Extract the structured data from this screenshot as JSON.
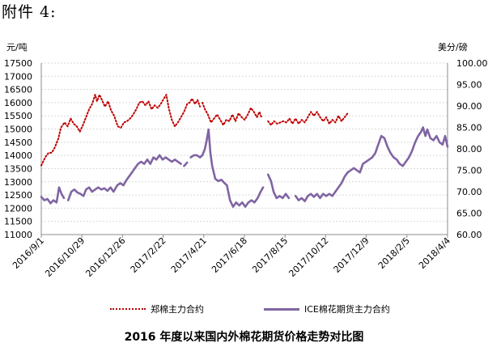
{
  "heading": "附件 4:",
  "caption": "2016 年度以来国内外棉花期货价格走势对比图",
  "chart_data": {
    "type": "line",
    "units": {
      "left": "元/吨",
      "right": "美分/磅"
    },
    "y_left": {
      "min": 11000,
      "max": 17500,
      "step": 500,
      "ticks": [
        "11000",
        "11500",
        "12000",
        "12500",
        "13000",
        "13500",
        "14000",
        "14500",
        "15000",
        "15500",
        "16000",
        "16500",
        "17000",
        "17500"
      ]
    },
    "y_right": {
      "min": 60.0,
      "max": 100.0,
      "step": 5,
      "ticks": [
        "60.00",
        "65.00",
        "70.00",
        "75.00",
        "80.00",
        "85.00",
        "90.00",
        "95.00",
        "100.00"
      ]
    },
    "x_ticks": [
      "2016/9/1",
      "2016/10/29",
      "2016/12/26",
      "2017/2/22",
      "2017/4/21",
      "2017/6/18",
      "2017/8/15",
      "2017/10/12",
      "2017/12/9",
      "2018/2/5",
      "2018/4/4"
    ],
    "series": [
      {
        "name": "郑棉主力合约",
        "axis": "left",
        "color": "#c00000",
        "segments": [
          [
            [
              0,
              13620
            ],
            [
              0.7,
              13950
            ],
            [
              1.2,
              14100
            ],
            [
              1.7,
              14100
            ],
            [
              2.2,
              14300
            ],
            [
              2.8,
              14650
            ],
            [
              3.2,
              15050
            ],
            [
              3.8,
              15250
            ],
            [
              4.3,
              15100
            ],
            [
              4.8,
              15400
            ],
            [
              5.3,
              15200
            ],
            [
              5.8,
              15100
            ],
            [
              6.3,
              14900
            ],
            [
              6.8,
              15150
            ],
            [
              7.3,
              15450
            ],
            [
              7.8,
              15750
            ],
            [
              8.3,
              15950
            ],
            [
              8.8,
              16300
            ],
            [
              9.1,
              16050
            ],
            [
              9.5,
              16300
            ],
            [
              9.9,
              16100
            ],
            [
              10.4,
              15850
            ],
            [
              10.9,
              16050
            ],
            [
              11.4,
              15700
            ],
            [
              11.9,
              15500
            ],
            [
              12.5,
              15100
            ],
            [
              13.0,
              15050
            ],
            [
              13.5,
              15250
            ],
            [
              14.0,
              15300
            ],
            [
              14.5,
              15400
            ],
            [
              15.0,
              15550
            ],
            [
              15.5,
              15750
            ],
            [
              16.0,
              16000
            ],
            [
              16.5,
              16050
            ],
            [
              17.0,
              15900
            ],
            [
              17.5,
              16050
            ],
            [
              18.0,
              15750
            ],
            [
              18.5,
              15900
            ],
            [
              19.0,
              15800
            ],
            [
              19.5,
              15950
            ],
            [
              20.0,
              16150
            ],
            [
              20.4,
              16300
            ],
            [
              20.8,
              15800
            ],
            [
              21.3,
              15350
            ],
            [
              21.8,
              15100
            ],
            [
              22.3,
              15250
            ],
            [
              22.8,
              15450
            ],
            [
              23.3,
              15650
            ],
            [
              23.8,
              15950
            ],
            [
              24.2,
              16000
            ],
            [
              24.6,
              16150
            ],
            [
              25.1,
              15950
            ],
            [
              25.5,
              16100
            ],
            [
              25.9,
              15850
            ]
          ],
          [
            [
              26.3,
              16000
            ],
            [
              26.7,
              15750
            ],
            [
              27.2,
              15550
            ],
            [
              27.7,
              15250
            ],
            [
              28.2,
              15400
            ],
            [
              28.7,
              15550
            ],
            [
              29.2,
              15350
            ],
            [
              29.7,
              15150
            ],
            [
              30.2,
              15350
            ],
            [
              30.7,
              15300
            ],
            [
              31.2,
              15550
            ],
            [
              31.7,
              15300
            ],
            [
              32.2,
              15600
            ],
            [
              32.7,
              15450
            ],
            [
              33.2,
              15350
            ],
            [
              33.7,
              15550
            ],
            [
              34.2,
              15800
            ],
            [
              34.7,
              15650
            ],
            [
              35.2,
              15450
            ],
            [
              35.6,
              15650
            ],
            [
              36.0,
              15400
            ]
          ],
          [
            [
              37.0,
              15300
            ],
            [
              37.5,
              15150
            ],
            [
              38.0,
              15300
            ],
            [
              38.5,
              15200
            ],
            [
              39.0,
              15250
            ],
            [
              39.5,
              15300
            ],
            [
              40.0,
              15250
            ],
            [
              40.5,
              15400
            ],
            [
              41.0,
              15200
            ],
            [
              41.5,
              15400
            ],
            [
              42.0,
              15200
            ],
            [
              42.5,
              15350
            ],
            [
              43.0,
              15250
            ],
            [
              43.5,
              15450
            ],
            [
              44.0,
              15650
            ],
            [
              44.5,
              15500
            ],
            [
              45.0,
              15650
            ],
            [
              45.5,
              15450
            ],
            [
              46.0,
              15300
            ],
            [
              46.5,
              15450
            ],
            [
              47.0,
              15200
            ],
            [
              47.5,
              15350
            ],
            [
              48.0,
              15250
            ],
            [
              48.5,
              15500
            ],
            [
              49.0,
              15300
            ],
            [
              49.5,
              15450
            ],
            [
              50.0,
              15600
            ]
          ]
        ]
      },
      {
        "name": "ICE棉花期货主力合约",
        "axis": "right",
        "color": "#8064a2",
        "segments": [
          [
            [
              0,
              68.8
            ],
            [
              0.5,
              68.0
            ],
            [
              1.0,
              68.3
            ],
            [
              1.5,
              67.3
            ],
            [
              2.0,
              68.0
            ],
            [
              2.5,
              67.5
            ],
            [
              2.9,
              71.0
            ],
            [
              3.3,
              69.5
            ],
            [
              3.7,
              68.5
            ]
          ],
          [
            [
              4.4,
              68.0
            ],
            [
              4.9,
              70.0
            ],
            [
              5.4,
              70.5
            ],
            [
              5.9,
              69.8
            ],
            [
              6.4,
              69.5
            ],
            [
              6.9,
              69.0
            ],
            [
              7.3,
              70.5
            ],
            [
              7.8,
              71.0
            ],
            [
              8.3,
              70.0
            ],
            [
              8.8,
              70.5
            ],
            [
              9.3,
              71.0
            ],
            [
              9.8,
              70.5
            ],
            [
              10.3,
              70.8
            ],
            [
              10.8,
              70.2
            ],
            [
              11.3,
              71.0
            ],
            [
              11.8,
              70.0
            ],
            [
              12.4,
              71.5
            ],
            [
              12.9,
              72.0
            ],
            [
              13.4,
              71.5
            ],
            [
              13.8,
              72.5
            ],
            [
              14.3,
              73.5
            ],
            [
              14.8,
              74.5
            ],
            [
              15.3,
              75.5
            ],
            [
              15.8,
              76.5
            ],
            [
              16.3,
              77.0
            ],
            [
              16.8,
              76.5
            ],
            [
              17.3,
              77.5
            ],
            [
              17.8,
              76.5
            ],
            [
              18.3,
              78.0
            ],
            [
              18.8,
              77.5
            ],
            [
              19.3,
              78.5
            ],
            [
              19.8,
              77.5
            ],
            [
              20.3,
              78.0
            ],
            [
              20.8,
              77.5
            ],
            [
              21.3,
              77.0
            ],
            [
              21.8,
              77.5
            ],
            [
              22.3,
              77.0
            ],
            [
              22.8,
              76.5
            ]
          ],
          [
            [
              23.3,
              76.0
            ],
            [
              23.8,
              76.8
            ]
          ],
          [
            [
              24.4,
              78.0
            ],
            [
              24.9,
              78.5
            ],
            [
              25.4,
              78.5
            ],
            [
              25.9,
              78.0
            ],
            [
              26.3,
              78.5
            ],
            [
              26.7,
              80.0
            ],
            [
              27.0,
              82.0
            ],
            [
              27.3,
              84.5
            ],
            [
              27.6,
              79.0
            ],
            [
              27.9,
              76.0
            ],
            [
              28.4,
              73.0
            ],
            [
              28.9,
              72.5
            ],
            [
              29.4,
              72.8
            ],
            [
              29.9,
              72.0
            ],
            [
              30.3,
              71.5
            ],
            [
              30.8,
              68.0
            ],
            [
              31.3,
              66.5
            ],
            [
              31.8,
              67.5
            ],
            [
              32.3,
              66.8
            ],
            [
              32.8,
              67.5
            ],
            [
              33.3,
              66.5
            ],
            [
              33.8,
              67.5
            ],
            [
              34.3,
              68.0
            ],
            [
              34.8,
              67.5
            ],
            [
              35.3,
              68.5
            ],
            [
              35.8,
              70.0
            ],
            [
              36.2,
              71.0
            ]
          ],
          [
            [
              37.0,
              74.0
            ],
            [
              37.5,
              72.5
            ],
            [
              37.9,
              70.0
            ],
            [
              38.4,
              68.5
            ],
            [
              38.9,
              69.0
            ],
            [
              39.4,
              68.5
            ],
            [
              39.9,
              69.5
            ],
            [
              40.4,
              68.5
            ]
          ],
          [
            [
              41.5,
              69.0
            ],
            [
              42.0,
              68.0
            ],
            [
              42.5,
              68.5
            ],
            [
              43.0,
              67.8
            ],
            [
              43.5,
              69.0
            ],
            [
              44.0,
              69.5
            ],
            [
              44.5,
              68.8
            ],
            [
              45.0,
              69.5
            ],
            [
              45.5,
              68.5
            ],
            [
              46.0,
              69.5
            ],
            [
              46.5,
              69.0
            ],
            [
              47.0,
              69.5
            ],
            [
              47.5,
              69.0
            ],
            [
              48.0,
              70.0
            ],
            [
              48.5,
              71.0
            ],
            [
              49.0,
              72.0
            ],
            [
              49.5,
              73.5
            ],
            [
              50.0,
              74.5
            ],
            [
              50.5,
              75.0
            ],
            [
              51.0,
              75.5
            ],
            [
              51.5,
              75.0
            ],
            [
              52.0,
              74.5
            ],
            [
              52.5,
              76.5
            ],
            [
              53.0,
              77.0
            ],
            [
              53.5,
              77.5
            ],
            [
              54.0,
              78.0
            ],
            [
              54.5,
              79.0
            ],
            [
              55.0,
              81.0
            ],
            [
              55.5,
              83.0
            ],
            [
              56.0,
              82.5
            ],
            [
              56.5,
              80.5
            ],
            [
              57.0,
              79.0
            ],
            [
              57.5,
              78.0
            ],
            [
              58.0,
              77.5
            ],
            [
              58.5,
              76.5
            ],
            [
              59.0,
              76.0
            ],
            [
              59.5,
              77.0
            ],
            [
              60.0,
              78.0
            ],
            [
              60.5,
              79.5
            ],
            [
              61.0,
              81.5
            ],
            [
              61.5,
              83.0
            ],
            [
              62.0,
              84.0
            ],
            [
              62.3,
              85.0
            ],
            [
              62.7,
              83.0
            ],
            [
              63.0,
              84.5
            ],
            [
              63.5,
              82.5
            ],
            [
              64.0,
              82.0
            ],
            [
              64.5,
              83.0
            ],
            [
              65.0,
              81.5
            ],
            [
              65.5,
              81.0
            ],
            [
              65.9,
              83.0
            ],
            [
              66.3,
              80.5
            ]
          ]
        ]
      }
    ]
  }
}
